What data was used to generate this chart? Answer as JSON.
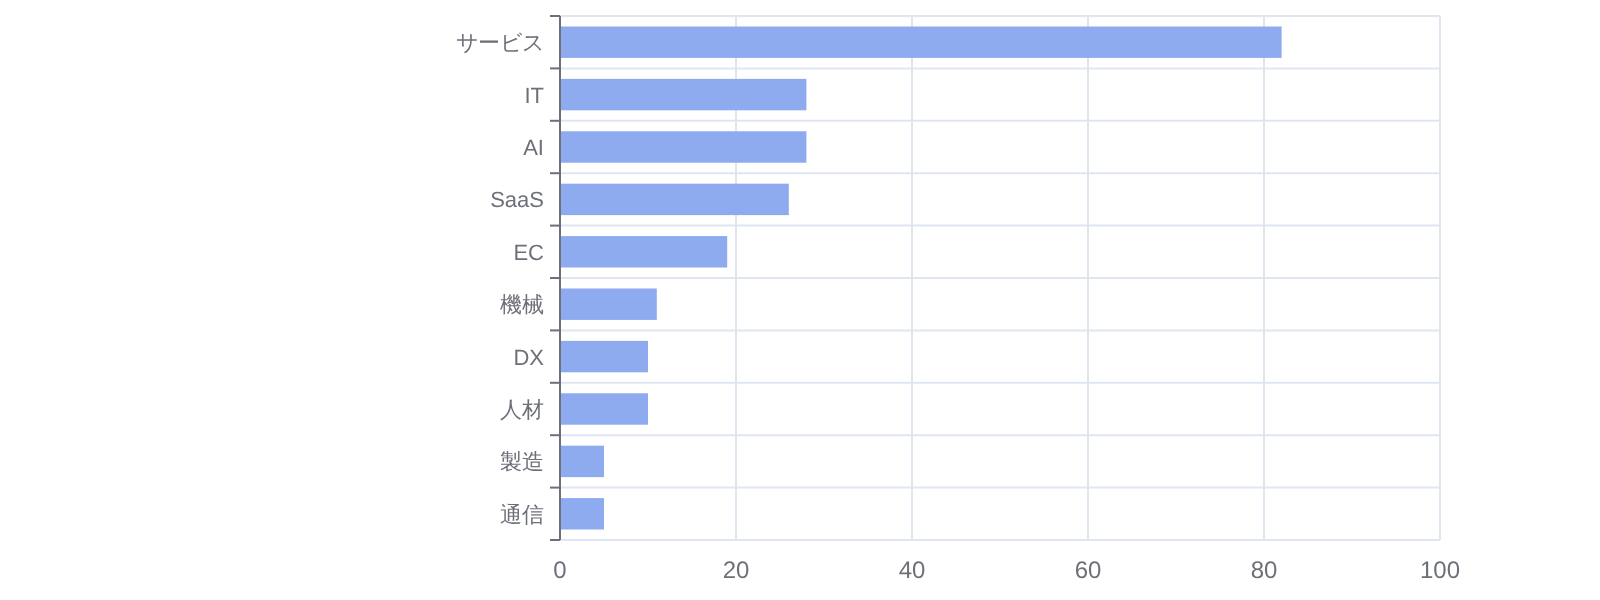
{
  "chart_data": {
    "type": "bar",
    "orientation": "horizontal",
    "categories": [
      "サービス",
      "IT",
      "AI",
      "SaaS",
      "EC",
      "機械",
      "DX",
      "人材",
      "製造",
      "通信"
    ],
    "values": [
      82,
      28,
      28,
      26,
      19,
      11,
      10,
      10,
      5,
      5
    ],
    "color": "#8eabef",
    "xlim": [
      0,
      100
    ],
    "xticks": [
      0,
      20,
      40,
      60,
      80,
      100
    ],
    "grid": true
  }
}
